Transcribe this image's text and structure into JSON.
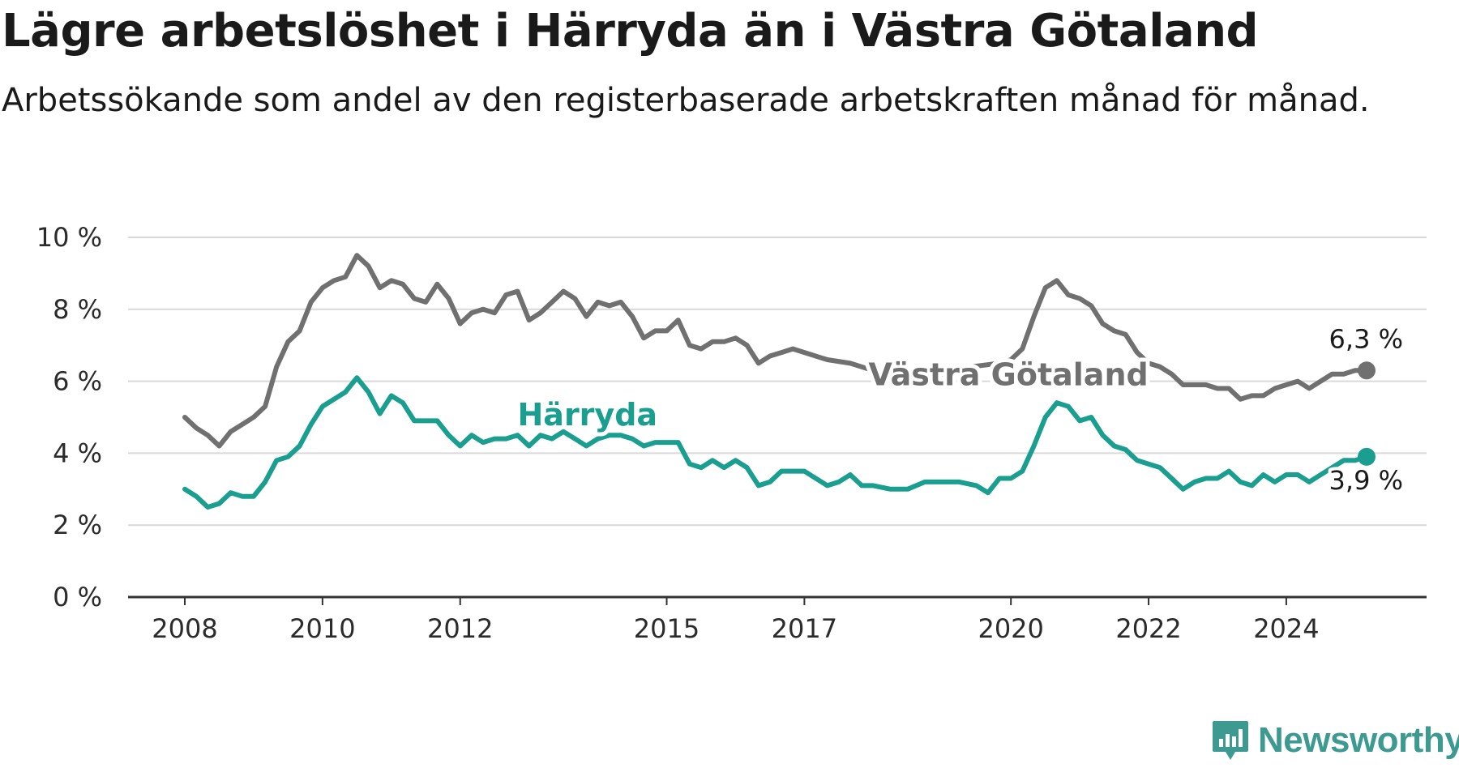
{
  "title": "Lägre arbetslöshet i Härryda än i Västra Götaland",
  "subtitle": "Arbetssökande som andel av den registerbaserade arbetskraften månad för månad.",
  "brand": {
    "name": "Newsworthy",
    "color": "#3d9a90",
    "icon": "newsworthy-logo-icon"
  },
  "chart_data": {
    "type": "line",
    "title": "Lägre arbetslöshet i Härryda än i Västra Götaland",
    "subtitle": "Arbetssökande som andel av den registerbaserade arbetskraften månad för månad.",
    "ylim": [
      0,
      10
    ],
    "yticks": [
      0,
      2,
      4,
      6,
      8,
      10
    ],
    "ytick_labels": [
      "0 %",
      "2 %",
      "4 %",
      "6 %",
      "8 %",
      "10 %"
    ],
    "xlim": [
      "2008-01",
      "2025-09"
    ],
    "xticks": [
      "2008-01",
      "2010-01",
      "2012-01",
      "2015-01",
      "2017-01",
      "2020-01",
      "2022-01",
      "2024-01"
    ],
    "xtick_labels": [
      "2008",
      "2010",
      "2012",
      "2015",
      "2017",
      "2020",
      "2022",
      "2024"
    ],
    "grid": true,
    "legend": "inline labels",
    "series": [
      {
        "name": "Västra Götaland",
        "color": "#707070",
        "label": "Västra Götaland",
        "end_label": "6,3 %",
        "points": [
          [
            "2008-01",
            5.0
          ],
          [
            "2008-03",
            4.7
          ],
          [
            "2008-05",
            4.5
          ],
          [
            "2008-07",
            4.2
          ],
          [
            "2008-09",
            4.6
          ],
          [
            "2008-11",
            4.8
          ],
          [
            "2009-01",
            5.0
          ],
          [
            "2009-03",
            5.3
          ],
          [
            "2009-05",
            6.4
          ],
          [
            "2009-07",
            7.1
          ],
          [
            "2009-09",
            7.4
          ],
          [
            "2009-11",
            8.2
          ],
          [
            "2010-01",
            8.6
          ],
          [
            "2010-03",
            8.8
          ],
          [
            "2010-05",
            8.9
          ],
          [
            "2010-07",
            9.5
          ],
          [
            "2010-09",
            9.2
          ],
          [
            "2010-11",
            8.6
          ],
          [
            "2011-01",
            8.8
          ],
          [
            "2011-03",
            8.7
          ],
          [
            "2011-05",
            8.3
          ],
          [
            "2011-07",
            8.2
          ],
          [
            "2011-09",
            8.7
          ],
          [
            "2011-11",
            8.3
          ],
          [
            "2012-01",
            7.6
          ],
          [
            "2012-03",
            7.9
          ],
          [
            "2012-05",
            8.0
          ],
          [
            "2012-07",
            7.9
          ],
          [
            "2012-09",
            8.4
          ],
          [
            "2012-11",
            8.5
          ],
          [
            "2013-01",
            7.7
          ],
          [
            "2013-03",
            7.9
          ],
          [
            "2013-05",
            8.2
          ],
          [
            "2013-07",
            8.5
          ],
          [
            "2013-09",
            8.3
          ],
          [
            "2013-11",
            7.8
          ],
          [
            "2014-01",
            8.2
          ],
          [
            "2014-03",
            8.1
          ],
          [
            "2014-05",
            8.2
          ],
          [
            "2014-07",
            7.8
          ],
          [
            "2014-09",
            7.2
          ],
          [
            "2014-11",
            7.4
          ],
          [
            "2015-01",
            7.4
          ],
          [
            "2015-03",
            7.7
          ],
          [
            "2015-05",
            7.0
          ],
          [
            "2015-07",
            6.9
          ],
          [
            "2015-09",
            7.1
          ],
          [
            "2015-11",
            7.1
          ],
          [
            "2016-01",
            7.2
          ],
          [
            "2016-03",
            7.0
          ],
          [
            "2016-05",
            6.5
          ],
          [
            "2016-07",
            6.7
          ],
          [
            "2016-09",
            6.8
          ],
          [
            "2016-11",
            6.9
          ],
          [
            "2017-01",
            6.8
          ],
          [
            "2017-05",
            6.6
          ],
          [
            "2017-09",
            6.5
          ],
          [
            "2018-01",
            6.3
          ],
          [
            "2018-06",
            6.1
          ],
          [
            "2019-01",
            6.2
          ],
          [
            "2019-06",
            6.4
          ],
          [
            "2019-11",
            6.5
          ],
          [
            "2020-01",
            6.6
          ],
          [
            "2020-03",
            6.9
          ],
          [
            "2020-05",
            7.8
          ],
          [
            "2020-07",
            8.6
          ],
          [
            "2020-09",
            8.8
          ],
          [
            "2020-11",
            8.4
          ],
          [
            "2021-01",
            8.3
          ],
          [
            "2021-03",
            8.1
          ],
          [
            "2021-05",
            7.6
          ],
          [
            "2021-07",
            7.4
          ],
          [
            "2021-09",
            7.3
          ],
          [
            "2021-11",
            6.8
          ],
          [
            "2022-01",
            6.5
          ],
          [
            "2022-03",
            6.4
          ],
          [
            "2022-05",
            6.2
          ],
          [
            "2022-07",
            5.9
          ],
          [
            "2022-09",
            5.9
          ],
          [
            "2022-11",
            5.9
          ],
          [
            "2023-01",
            5.8
          ],
          [
            "2023-03",
            5.8
          ],
          [
            "2023-05",
            5.5
          ],
          [
            "2023-07",
            5.6
          ],
          [
            "2023-09",
            5.6
          ],
          [
            "2023-11",
            5.8
          ],
          [
            "2024-01",
            5.9
          ],
          [
            "2024-03",
            6.0
          ],
          [
            "2024-05",
            5.8
          ],
          [
            "2024-07",
            6.0
          ],
          [
            "2024-09",
            6.2
          ],
          [
            "2024-11",
            6.2
          ],
          [
            "2025-01",
            6.3
          ],
          [
            "2025-03",
            6.3
          ]
        ]
      },
      {
        "name": "Härryda",
        "color": "#1a9e8f",
        "label": "Härryda",
        "end_label": "3,9 %",
        "points": [
          [
            "2008-01",
            3.0
          ],
          [
            "2008-03",
            2.8
          ],
          [
            "2008-05",
            2.5
          ],
          [
            "2008-07",
            2.6
          ],
          [
            "2008-09",
            2.9
          ],
          [
            "2008-11",
            2.8
          ],
          [
            "2009-01",
            2.8
          ],
          [
            "2009-03",
            3.2
          ],
          [
            "2009-05",
            3.8
          ],
          [
            "2009-07",
            3.9
          ],
          [
            "2009-09",
            4.2
          ],
          [
            "2009-11",
            4.8
          ],
          [
            "2010-01",
            5.3
          ],
          [
            "2010-03",
            5.5
          ],
          [
            "2010-05",
            5.7
          ],
          [
            "2010-07",
            6.1
          ],
          [
            "2010-09",
            5.7
          ],
          [
            "2010-11",
            5.1
          ],
          [
            "2011-01",
            5.6
          ],
          [
            "2011-03",
            5.4
          ],
          [
            "2011-05",
            4.9
          ],
          [
            "2011-07",
            4.9
          ],
          [
            "2011-09",
            4.9
          ],
          [
            "2011-11",
            4.5
          ],
          [
            "2012-01",
            4.2
          ],
          [
            "2012-03",
            4.5
          ],
          [
            "2012-05",
            4.3
          ],
          [
            "2012-07",
            4.4
          ],
          [
            "2012-09",
            4.4
          ],
          [
            "2012-11",
            4.5
          ],
          [
            "2013-01",
            4.2
          ],
          [
            "2013-03",
            4.5
          ],
          [
            "2013-05",
            4.4
          ],
          [
            "2013-07",
            4.6
          ],
          [
            "2013-09",
            4.4
          ],
          [
            "2013-11",
            4.2
          ],
          [
            "2014-01",
            4.4
          ],
          [
            "2014-03",
            4.5
          ],
          [
            "2014-05",
            4.5
          ],
          [
            "2014-07",
            4.4
          ],
          [
            "2014-09",
            4.2
          ],
          [
            "2014-11",
            4.3
          ],
          [
            "2015-01",
            4.3
          ],
          [
            "2015-03",
            4.3
          ],
          [
            "2015-05",
            3.7
          ],
          [
            "2015-07",
            3.6
          ],
          [
            "2015-09",
            3.8
          ],
          [
            "2015-11",
            3.6
          ],
          [
            "2016-01",
            3.8
          ],
          [
            "2016-03",
            3.6
          ],
          [
            "2016-05",
            3.1
          ],
          [
            "2016-07",
            3.2
          ],
          [
            "2016-09",
            3.5
          ],
          [
            "2016-11",
            3.5
          ],
          [
            "2017-01",
            3.5
          ],
          [
            "2017-03",
            3.3
          ],
          [
            "2017-05",
            3.1
          ],
          [
            "2017-07",
            3.2
          ],
          [
            "2017-09",
            3.4
          ],
          [
            "2017-11",
            3.1
          ],
          [
            "2018-01",
            3.1
          ],
          [
            "2018-04",
            3.0
          ],
          [
            "2018-07",
            3.0
          ],
          [
            "2018-10",
            3.2
          ],
          [
            "2019-01",
            3.2
          ],
          [
            "2019-04",
            3.2
          ],
          [
            "2019-07",
            3.1
          ],
          [
            "2019-09",
            2.9
          ],
          [
            "2019-11",
            3.3
          ],
          [
            "2020-01",
            3.3
          ],
          [
            "2020-03",
            3.5
          ],
          [
            "2020-05",
            4.2
          ],
          [
            "2020-07",
            5.0
          ],
          [
            "2020-09",
            5.4
          ],
          [
            "2020-11",
            5.3
          ],
          [
            "2021-01",
            4.9
          ],
          [
            "2021-03",
            5.0
          ],
          [
            "2021-05",
            4.5
          ],
          [
            "2021-07",
            4.2
          ],
          [
            "2021-09",
            4.1
          ],
          [
            "2021-11",
            3.8
          ],
          [
            "2022-01",
            3.7
          ],
          [
            "2022-03",
            3.6
          ],
          [
            "2022-05",
            3.3
          ],
          [
            "2022-07",
            3.0
          ],
          [
            "2022-09",
            3.2
          ],
          [
            "2022-11",
            3.3
          ],
          [
            "2023-01",
            3.3
          ],
          [
            "2023-03",
            3.5
          ],
          [
            "2023-05",
            3.2
          ],
          [
            "2023-07",
            3.1
          ],
          [
            "2023-09",
            3.4
          ],
          [
            "2023-11",
            3.2
          ],
          [
            "2024-01",
            3.4
          ],
          [
            "2024-03",
            3.4
          ],
          [
            "2024-05",
            3.2
          ],
          [
            "2024-07",
            3.4
          ],
          [
            "2024-09",
            3.6
          ],
          [
            "2024-11",
            3.8
          ],
          [
            "2025-01",
            3.8
          ],
          [
            "2025-03",
            3.9
          ]
        ]
      }
    ]
  }
}
